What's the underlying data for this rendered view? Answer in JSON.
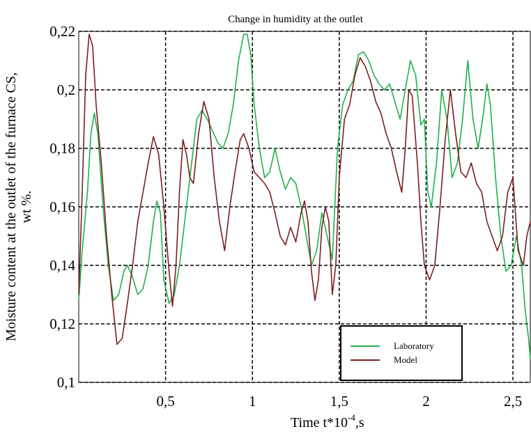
{
  "chart_data": {
    "type": "line",
    "title": "Change in humidity at the outlet",
    "xlabel_main": "Time t*10",
    "xlabel_sup": "-4",
    "xlabel_tail": ",s",
    "ylabel_line1": "Moisture content at the outlet of the furnace CS,",
    "ylabel_line2": "wt %.",
    "xlim": [
      0,
      2.6
    ],
    "ylim": [
      0.1,
      0.22
    ],
    "grid": true,
    "legend_position": "bottom-right",
    "x_ticks": [
      {
        "value": 0.5,
        "label": "0,5"
      },
      {
        "value": 1.0,
        "label": "1"
      },
      {
        "value": 1.5,
        "label": "1,5"
      },
      {
        "value": 2.0,
        "label": "2"
      },
      {
        "value": 2.5,
        "label": "2,5"
      }
    ],
    "y_ticks": [
      {
        "value": 0.1,
        "label": "0,1"
      },
      {
        "value": 0.12,
        "label": "0,12"
      },
      {
        "value": 0.14,
        "label": "0,14"
      },
      {
        "value": 0.16,
        "label": "0,16"
      },
      {
        "value": 0.18,
        "label": "0,18"
      },
      {
        "value": 0.2,
        "label": "0,2"
      },
      {
        "value": 0.22,
        "label": "0,22"
      }
    ],
    "series": [
      {
        "name": "Laboratory",
        "color": "#1fb04a",
        "points": [
          [
            0.0,
            0.128
          ],
          [
            0.02,
            0.145
          ],
          [
            0.05,
            0.165
          ],
          [
            0.07,
            0.185
          ],
          [
            0.09,
            0.192
          ],
          [
            0.11,
            0.185
          ],
          [
            0.14,
            0.16
          ],
          [
            0.17,
            0.14
          ],
          [
            0.2,
            0.128
          ],
          [
            0.23,
            0.13
          ],
          [
            0.26,
            0.138
          ],
          [
            0.28,
            0.14
          ],
          [
            0.31,
            0.136
          ],
          [
            0.34,
            0.13
          ],
          [
            0.37,
            0.132
          ],
          [
            0.4,
            0.14
          ],
          [
            0.43,
            0.155
          ],
          [
            0.45,
            0.162
          ],
          [
            0.47,
            0.158
          ],
          [
            0.49,
            0.135
          ],
          [
            0.52,
            0.127
          ],
          [
            0.55,
            0.13
          ],
          [
            0.58,
            0.14
          ],
          [
            0.61,
            0.155
          ],
          [
            0.65,
            0.175
          ],
          [
            0.68,
            0.19
          ],
          [
            0.71,
            0.193
          ],
          [
            0.74,
            0.19
          ],
          [
            0.77,
            0.186
          ],
          [
            0.8,
            0.182
          ],
          [
            0.83,
            0.18
          ],
          [
            0.86,
            0.185
          ],
          [
            0.89,
            0.195
          ],
          [
            0.92,
            0.21
          ],
          [
            0.95,
            0.219
          ],
          [
            0.97,
            0.219
          ],
          [
            0.99,
            0.212
          ],
          [
            1.01,
            0.195
          ],
          [
            1.04,
            0.18
          ],
          [
            1.07,
            0.17
          ],
          [
            1.1,
            0.172
          ],
          [
            1.13,
            0.18
          ],
          [
            1.16,
            0.172
          ],
          [
            1.19,
            0.166
          ],
          [
            1.22,
            0.17
          ],
          [
            1.25,
            0.168
          ],
          [
            1.28,
            0.16
          ],
          [
            1.31,
            0.15
          ],
          [
            1.34,
            0.14
          ],
          [
            1.37,
            0.145
          ],
          [
            1.4,
            0.158
          ],
          [
            1.43,
            0.15
          ],
          [
            1.46,
            0.142
          ],
          [
            1.49,
            0.18
          ],
          [
            1.52,
            0.195
          ],
          [
            1.55,
            0.2
          ],
          [
            1.58,
            0.203
          ],
          [
            1.61,
            0.212
          ],
          [
            1.64,
            0.213
          ],
          [
            1.67,
            0.21
          ],
          [
            1.7,
            0.205
          ],
          [
            1.73,
            0.202
          ],
          [
            1.76,
            0.2
          ],
          [
            1.79,
            0.202
          ],
          [
            1.82,
            0.196
          ],
          [
            1.85,
            0.19
          ],
          [
            1.88,
            0.2
          ],
          [
            1.91,
            0.21
          ],
          [
            1.94,
            0.205
          ],
          [
            1.97,
            0.188
          ],
          [
            1.99,
            0.19
          ],
          [
            2.01,
            0.165
          ],
          [
            2.03,
            0.16
          ],
          [
            2.06,
            0.175
          ],
          [
            2.09,
            0.2
          ],
          [
            2.12,
            0.19
          ],
          [
            2.15,
            0.17
          ],
          [
            2.18,
            0.175
          ],
          [
            2.21,
            0.19
          ],
          [
            2.24,
            0.21
          ],
          [
            2.27,
            0.19
          ],
          [
            2.3,
            0.18
          ],
          [
            2.33,
            0.192
          ],
          [
            2.35,
            0.202
          ],
          [
            2.37,
            0.195
          ],
          [
            2.4,
            0.17
          ],
          [
            2.43,
            0.15
          ],
          [
            2.46,
            0.138
          ],
          [
            2.49,
            0.14
          ],
          [
            2.52,
            0.15
          ],
          [
            2.55,
            0.14
          ],
          [
            2.57,
            0.125
          ],
          [
            2.59,
            0.115
          ],
          [
            2.6,
            0.108
          ]
        ]
      },
      {
        "name": "Model",
        "color": "#7a1e1e",
        "points": [
          [
            0.0,
            0.13
          ],
          [
            0.02,
            0.165
          ],
          [
            0.04,
            0.205
          ],
          [
            0.06,
            0.219
          ],
          [
            0.08,
            0.215
          ],
          [
            0.1,
            0.195
          ],
          [
            0.13,
            0.175
          ],
          [
            0.16,
            0.15
          ],
          [
            0.19,
            0.13
          ],
          [
            0.22,
            0.113
          ],
          [
            0.25,
            0.115
          ],
          [
            0.28,
            0.127
          ],
          [
            0.31,
            0.14
          ],
          [
            0.34,
            0.155
          ],
          [
            0.37,
            0.165
          ],
          [
            0.4,
            0.175
          ],
          [
            0.43,
            0.184
          ],
          [
            0.46,
            0.178
          ],
          [
            0.49,
            0.16
          ],
          [
            0.52,
            0.138
          ],
          [
            0.54,
            0.126
          ],
          [
            0.56,
            0.14
          ],
          [
            0.58,
            0.165
          ],
          [
            0.6,
            0.183
          ],
          [
            0.62,
            0.178
          ],
          [
            0.64,
            0.17
          ],
          [
            0.66,
            0.168
          ],
          [
            0.69,
            0.185
          ],
          [
            0.72,
            0.196
          ],
          [
            0.75,
            0.19
          ],
          [
            0.78,
            0.17
          ],
          [
            0.81,
            0.155
          ],
          [
            0.84,
            0.145
          ],
          [
            0.87,
            0.16
          ],
          [
            0.9,
            0.172
          ],
          [
            0.93,
            0.183
          ],
          [
            0.95,
            0.185
          ],
          [
            0.98,
            0.18
          ],
          [
            1.01,
            0.172
          ],
          [
            1.04,
            0.17
          ],
          [
            1.07,
            0.168
          ],
          [
            1.1,
            0.165
          ],
          [
            1.13,
            0.158
          ],
          [
            1.16,
            0.15
          ],
          [
            1.19,
            0.147
          ],
          [
            1.22,
            0.153
          ],
          [
            1.25,
            0.148
          ],
          [
            1.28,
            0.158
          ],
          [
            1.3,
            0.162
          ],
          [
            1.32,
            0.155
          ],
          [
            1.34,
            0.138
          ],
          [
            1.36,
            0.128
          ],
          [
            1.38,
            0.135
          ],
          [
            1.4,
            0.153
          ],
          [
            1.42,
            0.16
          ],
          [
            1.44,
            0.155
          ],
          [
            1.46,
            0.13
          ],
          [
            1.48,
            0.14
          ],
          [
            1.5,
            0.17
          ],
          [
            1.53,
            0.19
          ],
          [
            1.56,
            0.195
          ],
          [
            1.59,
            0.205
          ],
          [
            1.62,
            0.211
          ],
          [
            1.65,
            0.208
          ],
          [
            1.68,
            0.203
          ],
          [
            1.71,
            0.196
          ],
          [
            1.74,
            0.192
          ],
          [
            1.77,
            0.185
          ],
          [
            1.8,
            0.18
          ],
          [
            1.83,
            0.172
          ],
          [
            1.86,
            0.165
          ],
          [
            1.88,
            0.18
          ],
          [
            1.9,
            0.2
          ],
          [
            1.92,
            0.198
          ],
          [
            1.95,
            0.175
          ],
          [
            1.97,
            0.155
          ],
          [
            1.99,
            0.14
          ],
          [
            2.02,
            0.135
          ],
          [
            2.05,
            0.14
          ],
          [
            2.08,
            0.16
          ],
          [
            2.11,
            0.183
          ],
          [
            2.14,
            0.2
          ],
          [
            2.17,
            0.185
          ],
          [
            2.2,
            0.172
          ],
          [
            2.23,
            0.17
          ],
          [
            2.26,
            0.175
          ],
          [
            2.29,
            0.168
          ],
          [
            2.32,
            0.165
          ],
          [
            2.35,
            0.155
          ],
          [
            2.38,
            0.15
          ],
          [
            2.41,
            0.145
          ],
          [
            2.44,
            0.15
          ],
          [
            2.47,
            0.165
          ],
          [
            2.5,
            0.17
          ],
          [
            2.53,
            0.145
          ],
          [
            2.56,
            0.14
          ],
          [
            2.58,
            0.15
          ],
          [
            2.6,
            0.155
          ]
        ]
      }
    ]
  }
}
